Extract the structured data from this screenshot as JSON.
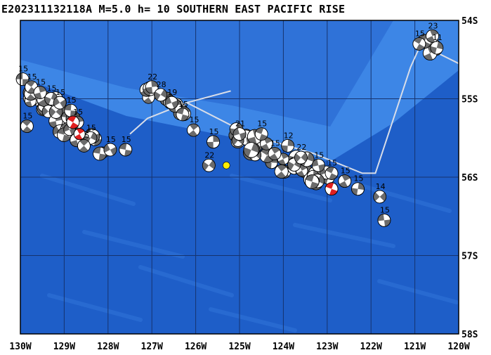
{
  "title": "E202311132118A M=5.0 h= 10 SOUTHERN EAST PACIFIC RISE",
  "colors": {
    "ocean_deep": "#1e5ec8",
    "ocean_mid": "#2f72d8",
    "ridge_band": "#3d86e6",
    "grid": "#16336e",
    "fault_line": "#d8dde8",
    "event_marker": "#ffee00",
    "mech_dark": "#6b6b6b",
    "mech_light": "#ffffff",
    "highlight": "#e02020"
  },
  "map": {
    "lon_range": [
      -130,
      -120
    ],
    "lat_range": [
      -58,
      -54
    ],
    "x_labels": [
      "130W",
      "129W",
      "128W",
      "127W",
      "126W",
      "125W",
      "124W",
      "123W",
      "122W",
      "121W",
      "120W"
    ],
    "y_labels": [
      "54S",
      "55S",
      "56S",
      "57S",
      "58S"
    ]
  },
  "event": {
    "lon": -125.3,
    "lat": -55.85
  },
  "mechanisms": [
    {
      "lon": -129.95,
      "lat": -54.75,
      "depth": "15"
    },
    {
      "lon": -129.75,
      "lat": -54.85,
      "depth": "15"
    },
    {
      "lon": -129.55,
      "lat": -54.92,
      "depth": "15"
    },
    {
      "lon": -129.3,
      "lat": -55.0,
      "depth": "15"
    },
    {
      "lon": -129.1,
      "lat": -55.05,
      "depth": "15"
    },
    {
      "lon": -128.85,
      "lat": -55.15,
      "depth": "15"
    },
    {
      "lon": -129.85,
      "lat": -55.35,
      "depth": "15"
    },
    {
      "lon": -128.7,
      "lat": -55.3,
      "depth": "15"
    },
    {
      "lon": -128.4,
      "lat": -55.5,
      "depth": "15"
    },
    {
      "lon": -127.95,
      "lat": -55.65,
      "depth": "15"
    },
    {
      "lon": -127.6,
      "lat": -55.65,
      "depth": "15"
    },
    {
      "lon": -128.55,
      "lat": -55.6,
      "depth": "15"
    },
    {
      "lon": -127.0,
      "lat": -54.85,
      "depth": "22"
    },
    {
      "lon": -126.8,
      "lat": -54.95,
      "depth": "28"
    },
    {
      "lon": -126.55,
      "lat": -55.05,
      "depth": "19"
    },
    {
      "lon": -126.3,
      "lat": -55.2,
      "depth": "15"
    },
    {
      "lon": -126.05,
      "lat": -55.4,
      "depth": "15"
    },
    {
      "lon": -125.6,
      "lat": -55.55,
      "depth": "15"
    },
    {
      "lon": -125.7,
      "lat": -55.85,
      "depth": "22"
    },
    {
      "lon": -125.0,
      "lat": -55.45,
      "depth": "21"
    },
    {
      "lon": -124.5,
      "lat": -55.45,
      "depth": "15"
    },
    {
      "lon": -124.2,
      "lat": -55.7,
      "depth": "15"
    },
    {
      "lon": -123.9,
      "lat": -55.6,
      "depth": "12"
    },
    {
      "lon": -123.6,
      "lat": -55.75,
      "depth": "22"
    },
    {
      "lon": -123.2,
      "lat": -55.85,
      "depth": "15"
    },
    {
      "lon": -122.9,
      "lat": -55.95,
      "depth": "15"
    },
    {
      "lon": -122.6,
      "lat": -56.05,
      "depth": "15"
    },
    {
      "lon": -122.3,
      "lat": -56.15,
      "depth": "15"
    },
    {
      "lon": -121.8,
      "lat": -56.25,
      "depth": "14"
    },
    {
      "lon": -121.7,
      "lat": -56.55,
      "depth": "15"
    },
    {
      "lon": -120.9,
      "lat": -54.3,
      "depth": "15"
    },
    {
      "lon": -120.6,
      "lat": -54.2,
      "depth": "23"
    },
    {
      "lon": -120.5,
      "lat": -54.35,
      "depth": "11"
    }
  ]
}
